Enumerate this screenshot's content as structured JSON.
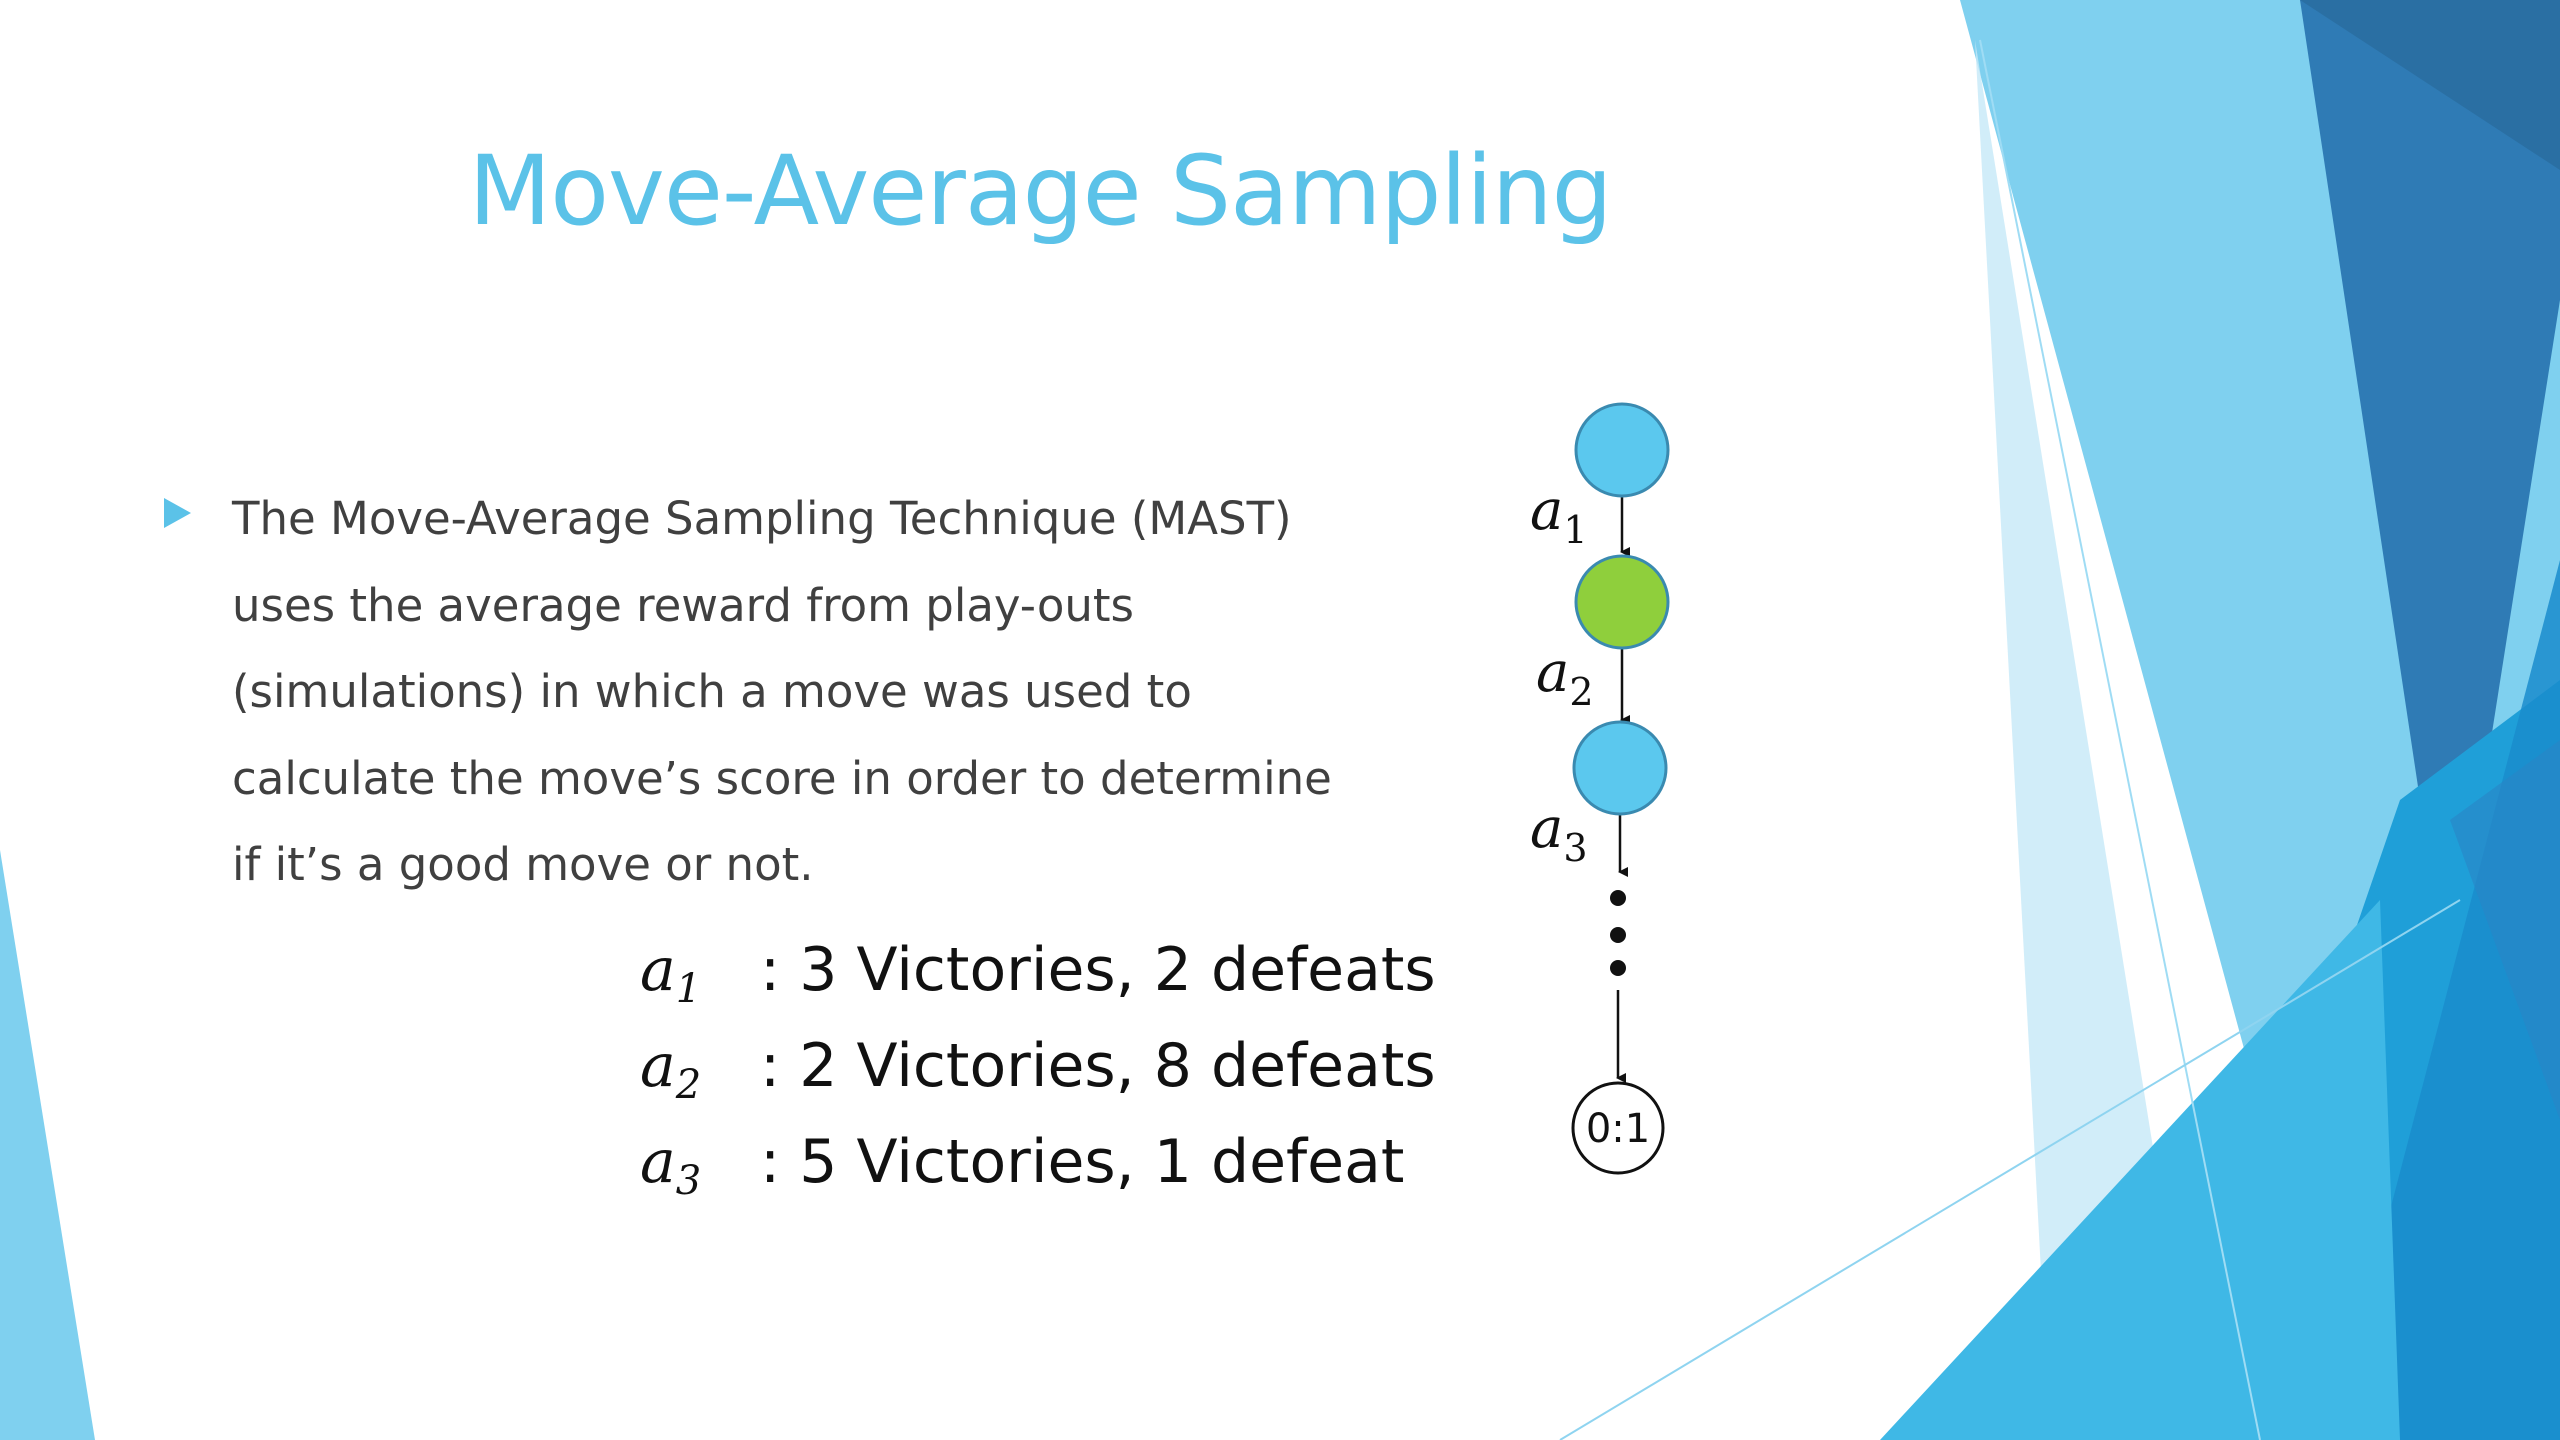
{
  "slide": {
    "title": "Move-Average Sampling",
    "bullet_lines": [
      "The Move-Average Sampling Technique (MAST)",
      "uses the average reward from play-outs",
      "(simulations) in which a move was used to",
      "calculate the move’s score in order to determine",
      "if it’s a good move or not."
    ],
    "stats": [
      {
        "var": "a",
        "sub": "1",
        "text": ":  3 Victories, 2 defeats"
      },
      {
        "var": "a",
        "sub": "2",
        "text": ":  2 Victories, 8 defeats"
      },
      {
        "var": "a",
        "sub": "3",
        "text": ":  5 Victories, 1 defeat"
      }
    ]
  },
  "tree": {
    "edge_labels": [
      {
        "var": "a",
        "sub": "1"
      },
      {
        "var": "a",
        "sub": "2"
      },
      {
        "var": "a",
        "sub": "3"
      }
    ],
    "leaf_label": "0:1",
    "colors": {
      "blue_node": "#5bc8ee",
      "green_node": "#8fcf3c",
      "node_stroke": "#3a8ab0"
    }
  },
  "theme": {
    "accent": "#5bc2e8",
    "dark_blue": "#2e6ea0"
  }
}
